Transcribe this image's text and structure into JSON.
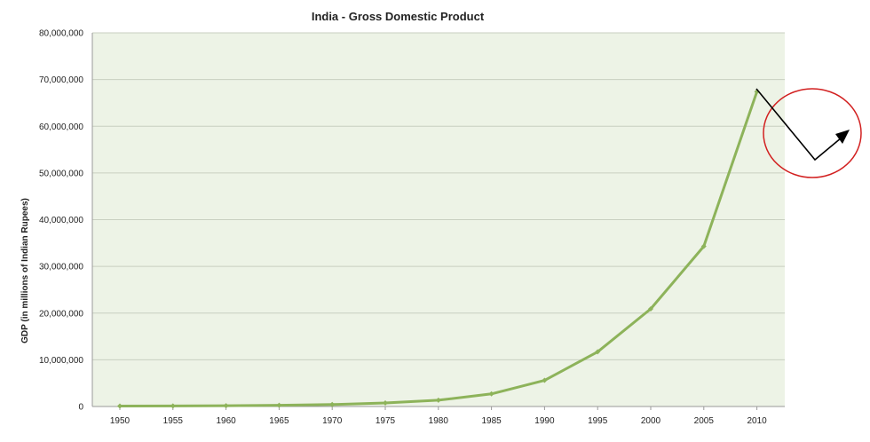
{
  "chart_data": {
    "type": "line",
    "title": "India - Gross Domestic Product",
    "xlabel": "",
    "ylabel": "GDP  (in millions of Indian Rupees)",
    "x": [
      "1950",
      "1955",
      "1960",
      "1965",
      "1970",
      "1975",
      "1980",
      "1985",
      "1990",
      "1995",
      "2000",
      "2005",
      "2010"
    ],
    "series": [
      {
        "values": [
          100000,
          115000,
          170000,
          260000,
          420000,
          750000,
          1350000,
          2700000,
          5600000,
          11700000,
          20900000,
          34300000,
          67400000
        ]
      }
    ],
    "ylim": [
      0,
      80000000
    ],
    "ytick_step": 10000000,
    "yticks": [
      "0",
      "10,000,000",
      "20,000,000",
      "30,000,000",
      "40,000,000",
      "50,000,000",
      "60,000,000",
      "70,000,000",
      "80,000,000"
    ],
    "grid": true,
    "legend": "none",
    "colors": {
      "plot_background": "#edf3e6",
      "gridline": "#c8cfc0",
      "line": "#8db35a",
      "annotation_circle": "#d22020",
      "annotation_arrow": "#000000"
    },
    "annotation": {
      "type": "circled-arrow",
      "description": "trend-reversal arrow"
    }
  }
}
